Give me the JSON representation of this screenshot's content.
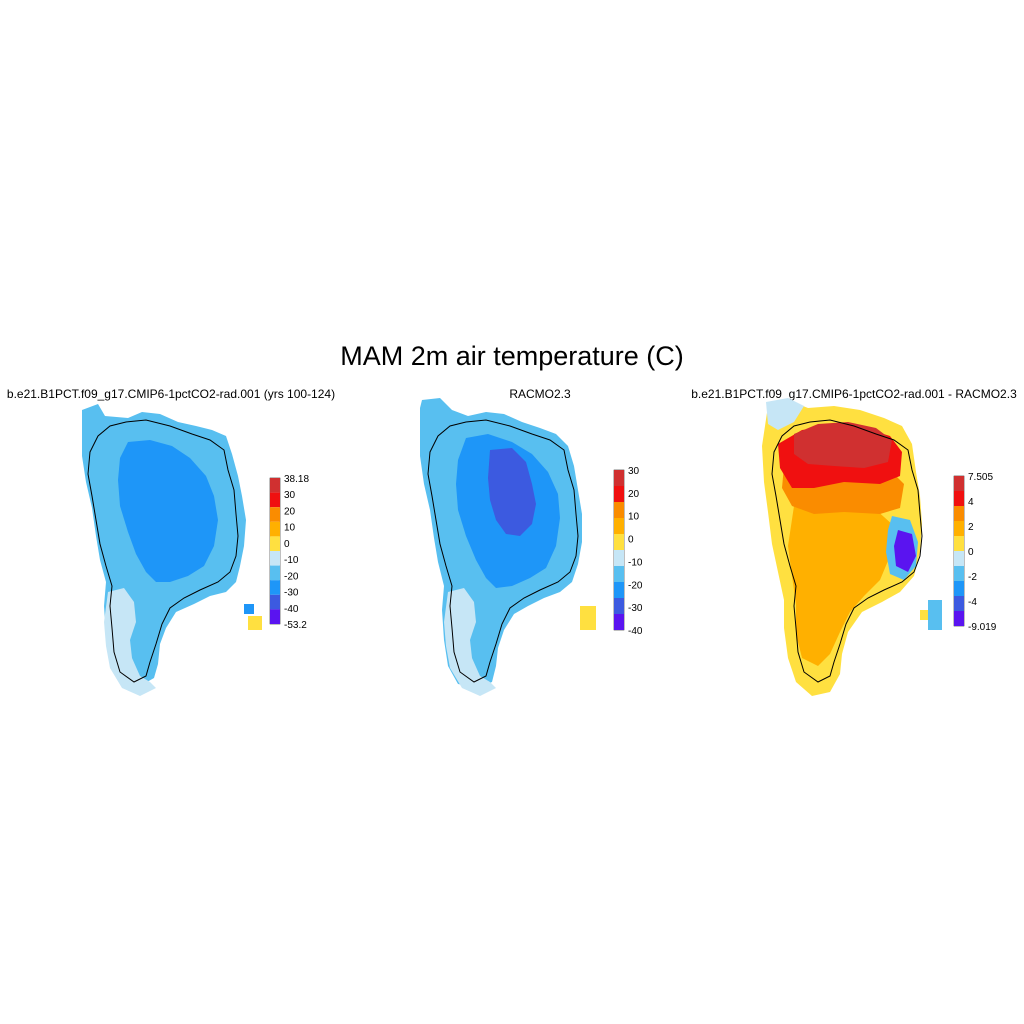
{
  "title": "MAM 2m air temperature (C)",
  "panels": [
    {
      "title": "b.e21.B1PCT.f09_g17.CMIP6-1pctCO2-rad.001 (yrs 100-124)",
      "legend": {
        "colors": [
          "#d03030",
          "#f01010",
          "#fa8c00",
          "#ffb000",
          "#ffe040",
          "#c6e6f6",
          "#58bff0",
          "#1e96f8",
          "#3c5ae0",
          "#5a14f0"
        ],
        "labels": [
          "38.18",
          "30",
          "20",
          "10",
          "0",
          "-10",
          "-20",
          "-30",
          "-40",
          "-53.2"
        ]
      }
    },
    {
      "title": "RACMO2.3",
      "legend": {
        "colors": [
          "#d03030",
          "#f01010",
          "#fa8c00",
          "#ffb000",
          "#ffe040",
          "#c6e6f6",
          "#58bff0",
          "#1e96f8",
          "#3c5ae0",
          "#5a14f0"
        ],
        "labels": [
          "30",
          "20",
          "10",
          "0",
          "-10",
          "-20",
          "-30",
          "-40"
        ]
      }
    },
    {
      "title": "b.e21.B1PCT.f09_g17.CMIP6-1pctCO2-rad.001 - RACMO2.3",
      "legend": {
        "colors": [
          "#d03030",
          "#f01010",
          "#fa8c00",
          "#ffb000",
          "#ffe040",
          "#c6e6f6",
          "#58bff0",
          "#1e96f8",
          "#3c5ae0",
          "#5a14f0"
        ],
        "labels": [
          "7.505",
          "4",
          "2",
          "0",
          "-2",
          "-4",
          "-9.019"
        ]
      }
    }
  ]
}
